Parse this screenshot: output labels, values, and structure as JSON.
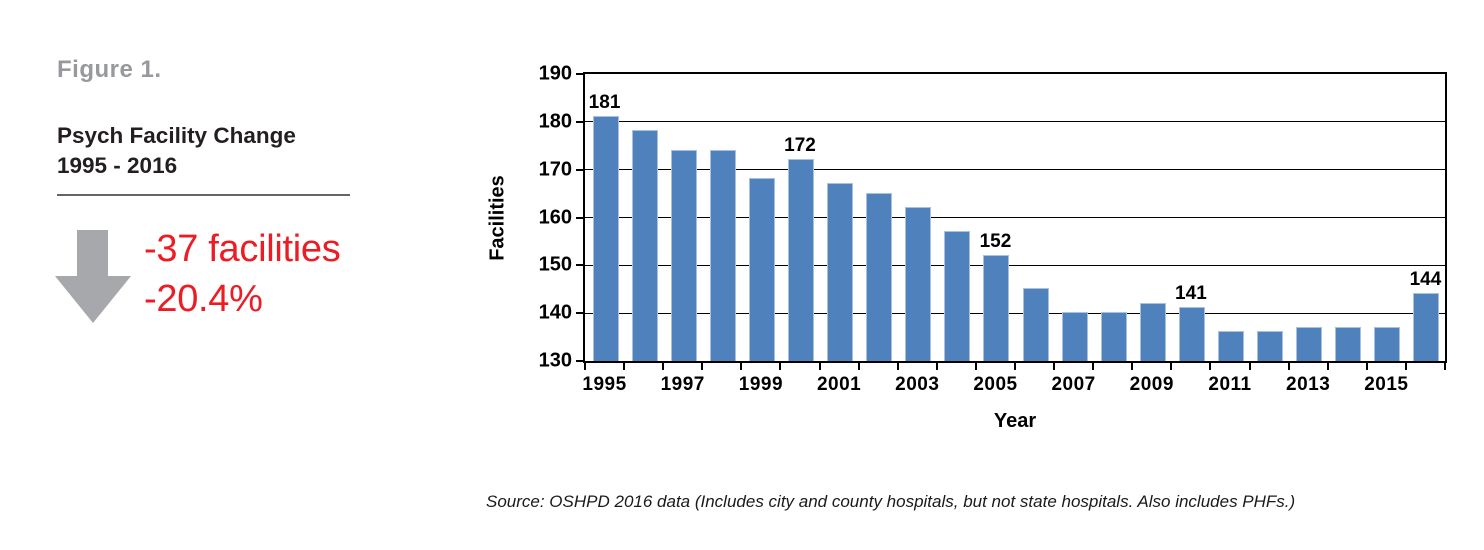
{
  "panel": {
    "figure_label": "Figure 1.",
    "title_line1": "Psych Facility Change",
    "title_line2": "1995 - 2016",
    "change_facilities": "-37 facilities",
    "change_percent": "-20.4%"
  },
  "chart_data": {
    "type": "bar",
    "title": "",
    "xlabel": "Year",
    "ylabel": "Facilities",
    "ylim": [
      130,
      190
    ],
    "ytick_step": 10,
    "grid": true,
    "categories": [
      1995,
      1996,
      1997,
      1998,
      1999,
      2000,
      2001,
      2002,
      2003,
      2004,
      2005,
      2006,
      2007,
      2008,
      2009,
      2010,
      2011,
      2012,
      2013,
      2014,
      2015,
      2016
    ],
    "values": [
      181,
      178,
      174,
      174,
      168,
      172,
      167,
      165,
      162,
      157,
      152,
      145,
      140,
      140,
      142,
      141,
      136,
      136,
      137,
      137,
      137,
      144
    ],
    "data_labels": {
      "1995": 181,
      "2000": 172,
      "2005": 152,
      "2010": 141,
      "2016": 144
    },
    "xtick_years": [
      1995,
      1997,
      1999,
      2001,
      2003,
      2005,
      2007,
      2009,
      2011,
      2013,
      2015
    ]
  },
  "source_note": "Source: OSHPD 2016 data (Includes city and county hospitals, but not state hospitals. Also includes PHFs.)",
  "colors": {
    "bar_blue": "#4f81bd",
    "bar_border": "#a9c0de",
    "accent_red": "#ed1c24",
    "figure_label_gray": "#97999c",
    "arrow_gray": "#a6a8ab",
    "divider_gray": "#636569",
    "axis_black": "#000000"
  }
}
